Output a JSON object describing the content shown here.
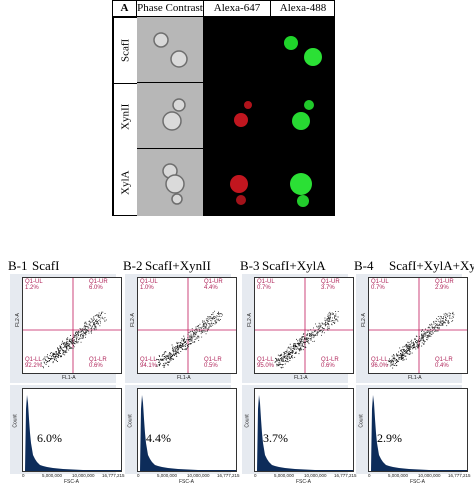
{
  "panelA": {
    "label": "A",
    "headers": [
      "Phase Contrast",
      "Alexa-647",
      "Alexa-488"
    ],
    "rows": [
      "ScafI",
      "XynII",
      "XylA"
    ]
  },
  "panelB": [
    {
      "label": "B-1",
      "title": "ScafI",
      "ul": "Q1-UL\n1.2%",
      "ur": "Q1-UR\n6.0%",
      "ll": "Q1-LL\n92.2%",
      "lr": "Q1-LR\n0.6%",
      "percent": "6.0%"
    },
    {
      "label": "B-2",
      "title": "ScafI+XynII",
      "ul": "Q1-UL\n1.0%",
      "ur": "Q1-UR\n4.4%",
      "ll": "Q1-LL\n94.1%",
      "lr": "Q1-LR\n0.5%",
      "percent": "4.4%"
    },
    {
      "label": "B-3",
      "title": "ScafI+XylA",
      "ul": "Q1-UL\n0.7%",
      "ur": "Q1-UR\n3.7%",
      "ll": "Q1-LL\n95.0%",
      "lr": "Q1-LR\n0.6%",
      "percent": "3.7%"
    },
    {
      "label": "B-4",
      "title": "ScafI+XylA+XynII",
      "ul": "Q1-UL\n0.7%",
      "ur": "Q1-UR\n2.9%",
      "ll": "Q1-LL\n96.0%",
      "lr": "Q1-LR\n0.4%",
      "percent": "2.9%"
    }
  ],
  "axes": {
    "scatter_y": "FL2-A",
    "scatter_x": "FL1-A",
    "hist_y": "Count",
    "hist_x": "FSC-A",
    "hist_ticks": [
      "0",
      "5,000,000",
      "10,000,000",
      "16,777,215"
    ]
  }
}
